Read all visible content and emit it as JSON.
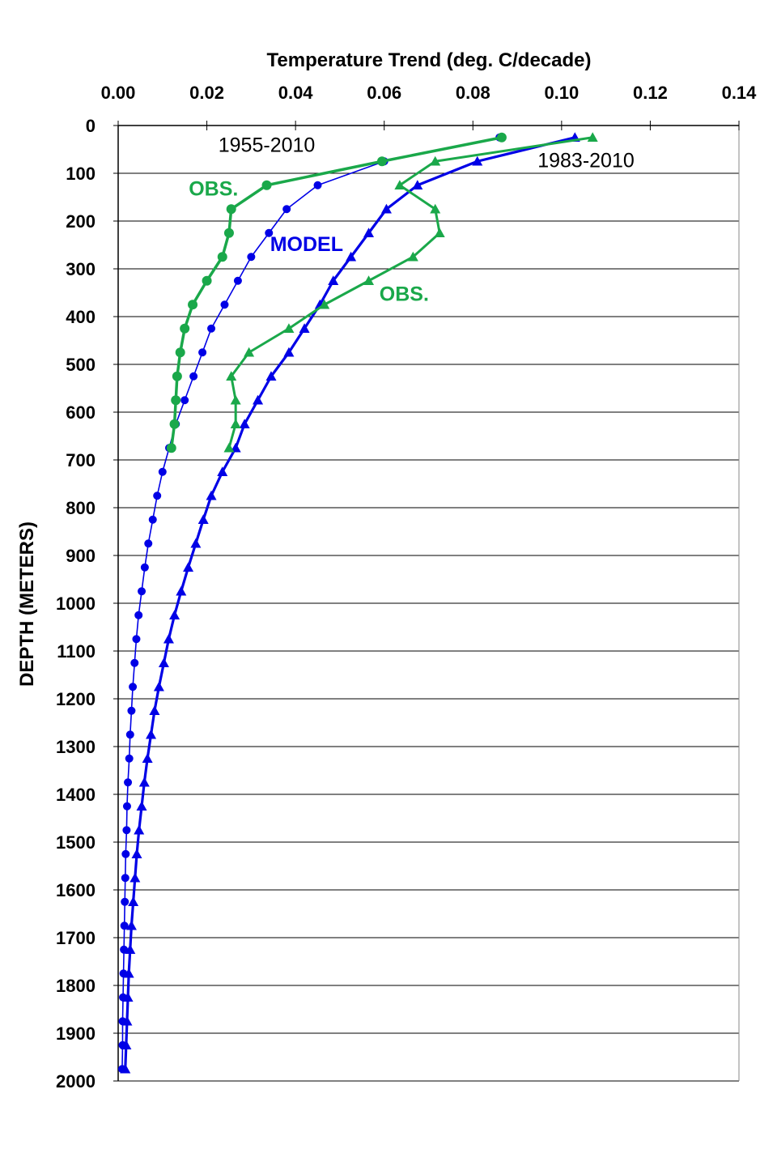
{
  "chart_data": {
    "type": "line",
    "title": "",
    "xlabel": "Temperature Trend (deg. C/decade)",
    "ylabel": "DEPTH (METERS)",
    "xlim": [
      0,
      0.14
    ],
    "ylim": [
      2000,
      0
    ],
    "x_ticks": [
      "0.00",
      "0.02",
      "0.04",
      "0.06",
      "0.08",
      "0.10",
      "0.12",
      "0.14"
    ],
    "y_ticks": [
      "0",
      "100",
      "200",
      "300",
      "400",
      "500",
      "600",
      "700",
      "800",
      "900",
      "1000",
      "1100",
      "1200",
      "1300",
      "1400",
      "1500",
      "1600",
      "1700",
      "1800",
      "1900",
      "2000"
    ],
    "x_axis_position": "top",
    "y_inverted": true,
    "grid": "horizontal",
    "colors": {
      "model": "#0000e6",
      "obs": "#1aa84a"
    },
    "series": [
      {
        "period": "1955-2010",
        "kind": "model",
        "marker": "circle",
        "color": "#0000e6",
        "points": [
          [
            0.086,
            25
          ],
          [
            0.06,
            75
          ],
          [
            0.045,
            125
          ],
          [
            0.038,
            175
          ],
          [
            0.034,
            225
          ],
          [
            0.03,
            275
          ],
          [
            0.027,
            325
          ],
          [
            0.024,
            375
          ],
          [
            0.021,
            425
          ],
          [
            0.019,
            475
          ],
          [
            0.017,
            525
          ],
          [
            0.015,
            575
          ],
          [
            0.013,
            625
          ],
          [
            0.0115,
            675
          ],
          [
            0.01,
            725
          ],
          [
            0.0088,
            775
          ],
          [
            0.0078,
            825
          ],
          [
            0.0068,
            875
          ],
          [
            0.006,
            925
          ],
          [
            0.0053,
            975
          ],
          [
            0.0046,
            1025
          ],
          [
            0.0041,
            1075
          ],
          [
            0.0037,
            1125
          ],
          [
            0.0033,
            1175
          ],
          [
            0.003,
            1225
          ],
          [
            0.0027,
            1275
          ],
          [
            0.0025,
            1325
          ],
          [
            0.0022,
            1375
          ],
          [
            0.002,
            1425
          ],
          [
            0.0019,
            1475
          ],
          [
            0.0017,
            1525
          ],
          [
            0.0016,
            1575
          ],
          [
            0.0015,
            1625
          ],
          [
            0.0014,
            1675
          ],
          [
            0.0013,
            1725
          ],
          [
            0.0012,
            1775
          ],
          [
            0.0011,
            1825
          ],
          [
            0.001,
            1875
          ],
          [
            0.001,
            1925
          ],
          [
            0.0009,
            1975
          ]
        ]
      },
      {
        "period": "1955-2010",
        "kind": "obs",
        "marker": "circle",
        "color": "#1aa84a",
        "points": [
          [
            0.0865,
            25
          ],
          [
            0.0595,
            75
          ],
          [
            0.0335,
            125
          ],
          [
            0.0255,
            175
          ],
          [
            0.025,
            225
          ],
          [
            0.0235,
            275
          ],
          [
            0.02,
            325
          ],
          [
            0.0168,
            375
          ],
          [
            0.015,
            425
          ],
          [
            0.014,
            475
          ],
          [
            0.0133,
            525
          ],
          [
            0.013,
            575
          ],
          [
            0.0127,
            625
          ],
          [
            0.012,
            675
          ]
        ]
      },
      {
        "period": "1983-2010",
        "kind": "model",
        "marker": "triangle",
        "color": "#0000e6",
        "points": [
          [
            0.103,
            25
          ],
          [
            0.081,
            75
          ],
          [
            0.0675,
            125
          ],
          [
            0.0605,
            175
          ],
          [
            0.0565,
            225
          ],
          [
            0.0525,
            275
          ],
          [
            0.0485,
            325
          ],
          [
            0.0455,
            375
          ],
          [
            0.042,
            425
          ],
          [
            0.0385,
            475
          ],
          [
            0.0345,
            525
          ],
          [
            0.0315,
            575
          ],
          [
            0.0285,
            625
          ],
          [
            0.0265,
            675
          ],
          [
            0.0235,
            725
          ],
          [
            0.021,
            775
          ],
          [
            0.0192,
            825
          ],
          [
            0.0175,
            875
          ],
          [
            0.0158,
            925
          ],
          [
            0.0142,
            975
          ],
          [
            0.0127,
            1025
          ],
          [
            0.0114,
            1075
          ],
          [
            0.0103,
            1125
          ],
          [
            0.0092,
            1175
          ],
          [
            0.0082,
            1225
          ],
          [
            0.0074,
            1275
          ],
          [
            0.0066,
            1325
          ],
          [
            0.0059,
            1375
          ],
          [
            0.0053,
            1425
          ],
          [
            0.0047,
            1475
          ],
          [
            0.0042,
            1525
          ],
          [
            0.0038,
            1575
          ],
          [
            0.0034,
            1625
          ],
          [
            0.003,
            1675
          ],
          [
            0.0027,
            1725
          ],
          [
            0.0024,
            1775
          ],
          [
            0.0022,
            1825
          ],
          [
            0.002,
            1875
          ],
          [
            0.0018,
            1925
          ],
          [
            0.0016,
            1975
          ]
        ]
      },
      {
        "period": "1983-2010",
        "kind": "obs",
        "marker": "triangle",
        "color": "#1aa84a",
        "points": [
          [
            0.107,
            25
          ],
          [
            0.0715,
            75
          ],
          [
            0.0635,
            125
          ],
          [
            0.0715,
            175
          ],
          [
            0.0725,
            225
          ],
          [
            0.0665,
            275
          ],
          [
            0.0565,
            325
          ],
          [
            0.0465,
            375
          ],
          [
            0.0385,
            425
          ],
          [
            0.0295,
            475
          ],
          [
            0.0255,
            525
          ],
          [
            0.0265,
            575
          ],
          [
            0.0265,
            625
          ],
          [
            0.025,
            675
          ]
        ]
      }
    ],
    "annotations": [
      {
        "text": "1955-2010",
        "x": 0.0335,
        "y": 55,
        "color": "#000000",
        "bold": false
      },
      {
        "text": "1983-2010",
        "x": 0.1055,
        "y": 87,
        "color": "#000000",
        "bold": false
      },
      {
        "text": "OBS.",
        "x": 0.0215,
        "y": 147,
        "color": "#1aa84a",
        "bold": true
      },
      {
        "text": "MODEL",
        "x": 0.0425,
        "y": 263,
        "color": "#0000e6",
        "bold": true
      },
      {
        "text": "OBS.",
        "x": 0.0645,
        "y": 367,
        "color": "#1aa84a",
        "bold": true
      }
    ]
  }
}
